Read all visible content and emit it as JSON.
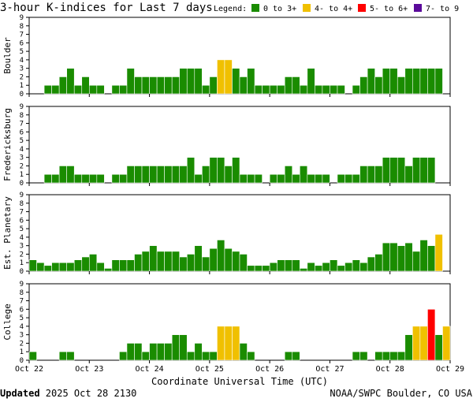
{
  "title": "3-hour K-indices for Last 7 days",
  "legend": {
    "label": "Legend:",
    "items": [
      {
        "label": "0 to 3+",
        "color": "#1a8c00"
      },
      {
        "label": "4- to 4+",
        "color": "#f0c000"
      },
      {
        "label": "5- to 6+",
        "color": "#ff0000"
      },
      {
        "label": "7- to 9",
        "color": "#5a0a9a"
      }
    ]
  },
  "x_ticks": [
    "Oct 22",
    "Oct 23",
    "Oct 24",
    "Oct 25",
    "Oct 26",
    "Oct 27",
    "Oct 28",
    "Oct 29"
  ],
  "x_axis_label": "Coordinate Universal Time (UTC)",
  "footer": {
    "updated_label": "Updated",
    "updated_value": "2025 Oct 28 2130",
    "source": "NOAA/SWPC Boulder, CO USA"
  },
  "chart_data": [
    {
      "type": "bar",
      "name": "Boulder",
      "ylim": [
        0,
        9
      ],
      "y_ticks": [
        "0",
        "1",
        "2",
        "3",
        "4",
        "5",
        "6",
        "7",
        "8",
        "9"
      ],
      "values": [
        0,
        0,
        1,
        1,
        2,
        3,
        1,
        2,
        1,
        1,
        0,
        1,
        1,
        3,
        2,
        2,
        2,
        2,
        2,
        2,
        3,
        3,
        3,
        1,
        2,
        4,
        4,
        3,
        2,
        3,
        1,
        1,
        1,
        1,
        2,
        2,
        1,
        3,
        1,
        1,
        1,
        1,
        0,
        1,
        2,
        3,
        2,
        3,
        3,
        2,
        3,
        3,
        3,
        3,
        3,
        0
      ]
    },
    {
      "type": "bar",
      "name": "Fredericksburg",
      "ylim": [
        0,
        9
      ],
      "y_ticks": [
        "0",
        "1",
        "2",
        "3",
        "4",
        "5",
        "6",
        "7",
        "8",
        "9"
      ],
      "values": [
        0,
        0,
        1,
        1,
        2,
        2,
        1,
        1,
        1,
        1,
        0,
        1,
        1,
        2,
        2,
        2,
        2,
        2,
        2,
        2,
        2,
        3,
        1,
        2,
        3,
        3,
        2,
        3,
        1,
        1,
        1,
        0,
        1,
        1,
        2,
        1,
        2,
        1,
        1,
        1,
        0,
        1,
        1,
        1,
        2,
        2,
        2,
        3,
        3,
        3,
        2,
        3,
        3,
        3,
        0,
        0
      ]
    },
    {
      "type": "bar",
      "name": "Est. Planetary",
      "ylim": [
        0,
        9
      ],
      "y_ticks": [
        "0",
        "1",
        "2",
        "3",
        "4",
        "5",
        "6",
        "7",
        "8",
        "9"
      ],
      "values": [
        1.33,
        1,
        0.67,
        1,
        1,
        1,
        1.33,
        1.67,
        2,
        1,
        0.33,
        1.33,
        1.33,
        1.33,
        2,
        2.33,
        3,
        2.33,
        2.33,
        2.33,
        1.67,
        2,
        3,
        1.67,
        2.67,
        3.67,
        2.67,
        2.33,
        2,
        0.67,
        0.67,
        0.67,
        1,
        1.33,
        1.33,
        1.33,
        0.33,
        1,
        0.67,
        1,
        1.33,
        0.67,
        1,
        1.33,
        1,
        1.67,
        2,
        3.33,
        3.33,
        3,
        3.33,
        2.33,
        3.67,
        3,
        4.33,
        0
      ]
    },
    {
      "type": "bar",
      "name": "College",
      "ylim": [
        0,
        9
      ],
      "y_ticks": [
        "0",
        "1",
        "2",
        "3",
        "4",
        "5",
        "6",
        "7",
        "8",
        "9"
      ],
      "values": [
        1,
        0,
        0,
        0,
        1,
        1,
        0,
        0,
        0,
        0,
        0,
        0,
        1,
        2,
        2,
        1,
        2,
        2,
        2,
        3,
        3,
        1,
        2,
        1,
        1,
        4,
        4,
        4,
        2,
        1,
        0,
        0,
        0,
        0,
        1,
        1,
        0,
        0,
        0,
        0,
        0,
        0,
        0,
        1,
        1,
        0,
        1,
        1,
        1,
        1,
        3,
        4,
        4,
        6,
        3,
        4
      ]
    }
  ]
}
